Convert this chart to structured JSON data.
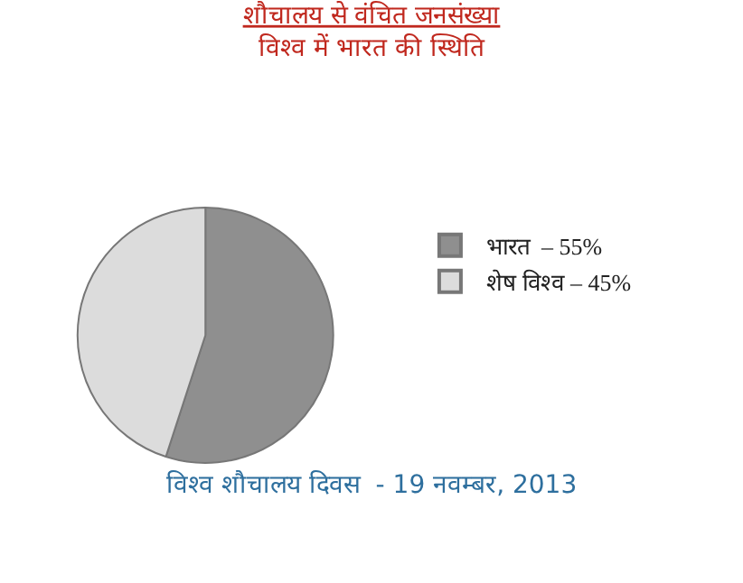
{
  "chart_data": {
    "type": "pie",
    "title": "शौचालय से वंचित जनसंख्या",
    "subtitle": "विश्व में भारत की स्थिति",
    "categories": [
      "भारत  – 55%",
      "शेष विश्व – 45%"
    ],
    "values": [
      55,
      45
    ],
    "colors": [
      "#8f8f8f",
      "#dcdcdc"
    ],
    "legend": "right",
    "annotations": [
      "विश्व शौचालय दिवस  - 19 नवम्बर, 2013"
    ]
  }
}
